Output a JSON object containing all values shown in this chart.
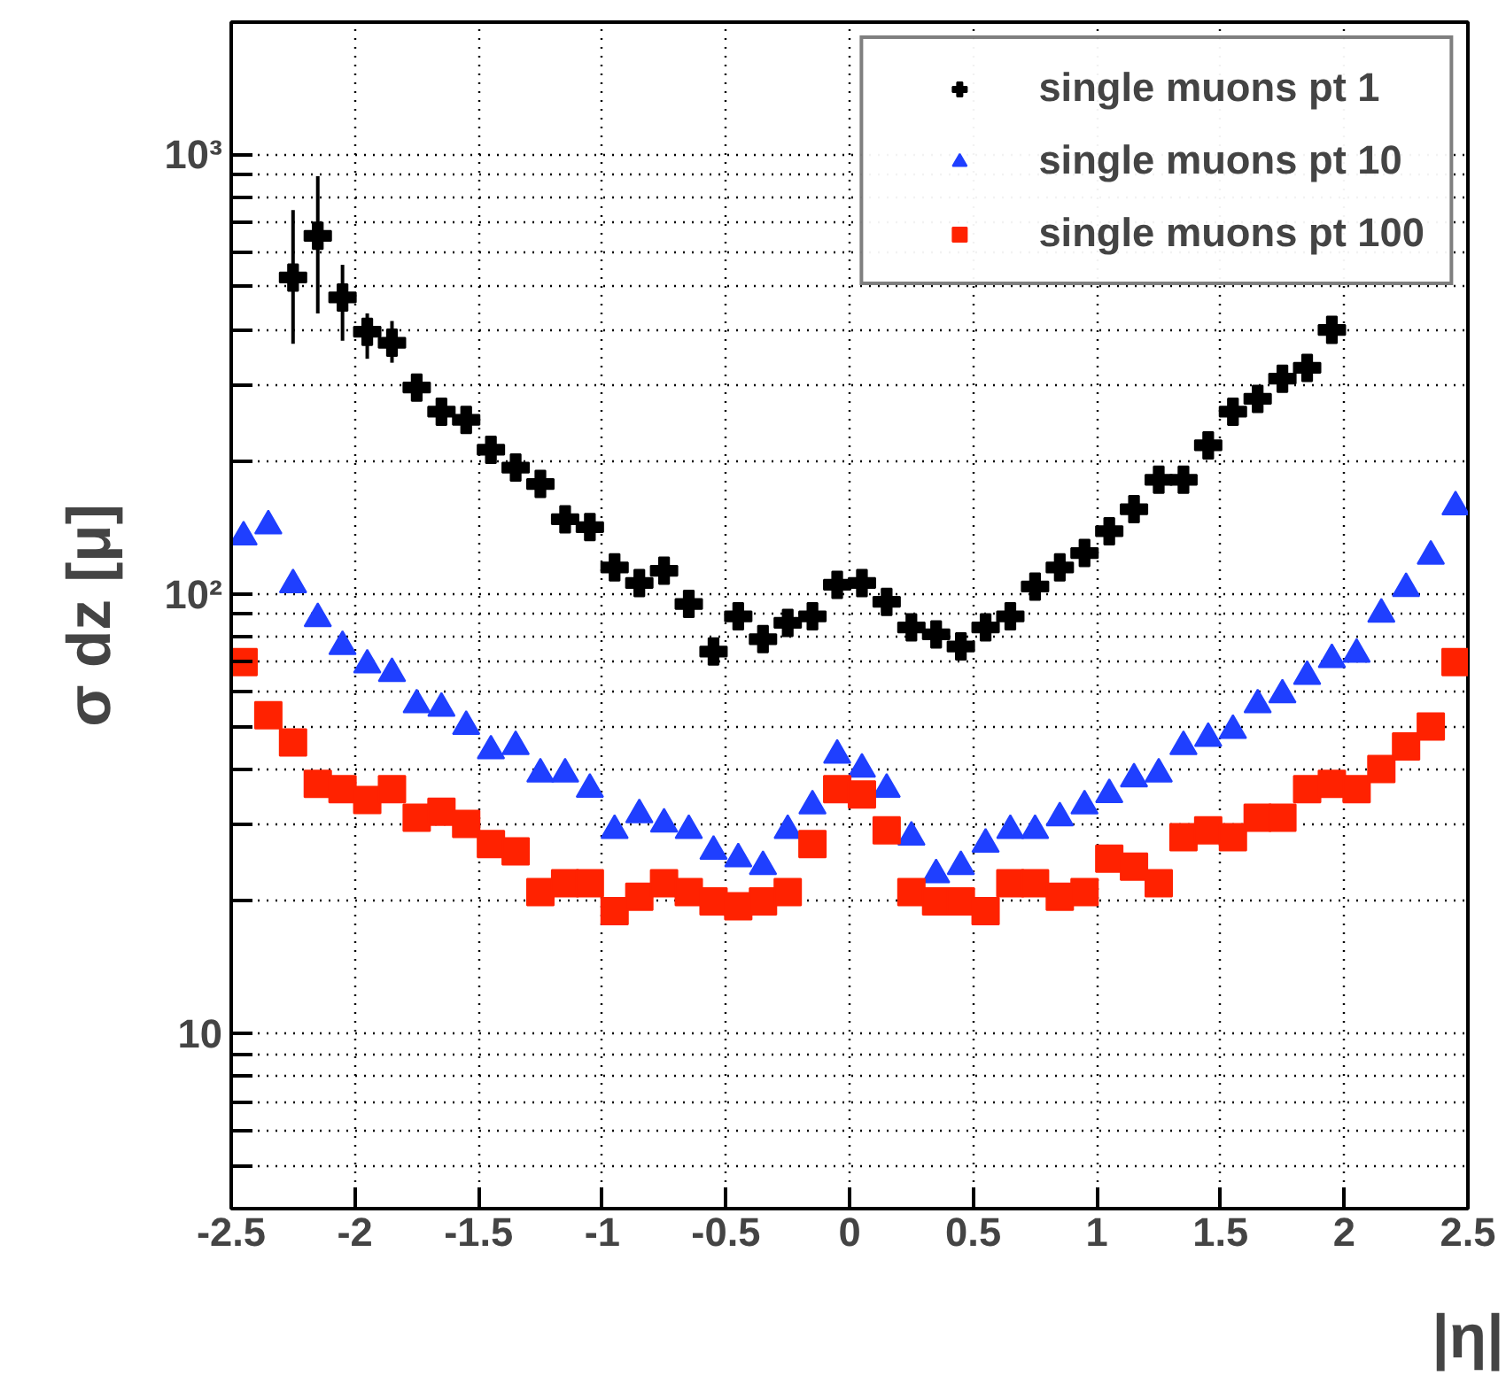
{
  "chart_data": {
    "type": "scatter",
    "ylabel": "σ dz [μ]",
    "xlabel": "|η|",
    "x": [
      -2.45,
      -2.35,
      -2.25,
      -2.15,
      -2.05,
      -1.95,
      -1.85,
      -1.75,
      -1.65,
      -1.55,
      -1.45,
      -1.35,
      -1.25,
      -1.15,
      -1.05,
      -0.95,
      -0.85,
      -0.75,
      -0.65,
      -0.55,
      -0.45,
      -0.35,
      -0.25,
      -0.15,
      -0.05,
      0.05,
      0.15,
      0.25,
      0.35,
      0.45,
      0.55,
      0.65,
      0.75,
      0.85,
      0.95,
      1.05,
      1.15,
      1.25,
      1.35,
      1.45,
      1.55,
      1.65,
      1.75,
      1.85,
      1.95,
      2.05,
      2.15,
      2.25,
      2.35,
      2.45
    ],
    "series": [
      {
        "name": "single muons pt 1",
        "color": "#000000",
        "marker": "cross",
        "values": [
          null,
          null,
          525,
          653,
          473,
          395,
          373,
          295,
          260,
          249,
          213,
          194,
          178,
          148,
          142,
          115,
          106,
          113,
          95,
          74,
          89,
          79,
          86,
          89,
          105,
          106,
          96,
          84,
          81,
          76,
          84,
          89,
          104,
          115,
          124,
          139,
          156,
          182,
          182,
          218,
          260,
          278,
          309,
          327,
          399,
          null,
          null,
          null,
          null,
          null
        ],
        "errors": [
          null,
          null,
          [
            371,
            747
          ],
          [
            435,
            892
          ],
          [
            377,
            561
          ],
          [
            343,
            435
          ],
          [
            336,
            418
          ],
          null,
          null,
          null,
          null,
          null,
          null,
          null,
          null,
          null,
          null,
          null,
          null,
          null,
          null,
          null,
          null,
          null,
          null,
          null,
          null,
          null,
          null,
          null,
          null,
          null,
          null,
          null,
          null,
          null,
          null,
          null,
          null,
          null,
          null,
          null,
          null,
          null,
          null,
          null,
          null,
          null,
          null,
          null
        ]
      },
      {
        "name": "single muons pt 10",
        "color": "#1f3fff",
        "marker": "triangle",
        "values": [
          135,
          143,
          105,
          88,
          76,
          69,
          66,
          56,
          55,
          50,
          44,
          45,
          39,
          39,
          36,
          29,
          31.5,
          30,
          29,
          26,
          25,
          24,
          29,
          33,
          43,
          40,
          36,
          28,
          23,
          24,
          27,
          29,
          29,
          31,
          33,
          35,
          38,
          39,
          45,
          47,
          49,
          56,
          59,
          65,
          71,
          73,
          90,
          103,
          122,
          158
        ]
      },
      {
        "name": "single muons pt 100",
        "color": "#ff2200",
        "marker": "square",
        "values": [
          70,
          53,
          46,
          37,
          36,
          34,
          36,
          31,
          32,
          30,
          27,
          26,
          21,
          22,
          22,
          19,
          20.5,
          22,
          21,
          20,
          19.5,
          20,
          21,
          27,
          36,
          35,
          29,
          21,
          20,
          20,
          19,
          22,
          22,
          20.5,
          21,
          25,
          24,
          22,
          28,
          29,
          28,
          31,
          31,
          36,
          37,
          36,
          40,
          45,
          50,
          70
        ]
      }
    ],
    "log": "y",
    "xlim": [
      -2.5,
      2.5
    ],
    "ylim": [
      4,
      2000
    ],
    "xticks": [
      -2.5,
      -2,
      -1.5,
      -1,
      -0.5,
      0,
      0.5,
      1,
      1.5,
      2,
      2.5
    ],
    "yticks": [
      {
        "value": 4,
        "label": null
      },
      {
        "value": 5,
        "label": null
      },
      {
        "value": 6,
        "label": null
      },
      {
        "value": 7,
        "label": null
      },
      {
        "value": 8,
        "label": null
      },
      {
        "value": 9,
        "label": null
      },
      10,
      {
        "value": 20,
        "label": null
      },
      {
        "value": 30,
        "label": null
      },
      {
        "value": 40,
        "label": null
      },
      {
        "value": 50,
        "label": null
      },
      {
        "value": 60,
        "label": null
      },
      {
        "value": 70,
        "label": null
      },
      {
        "value": 80,
        "label": null
      },
      {
        "value": 90,
        "label": null
      },
      {
        "value": 100,
        "label": "10²"
      },
      {
        "value": 200,
        "label": null
      },
      {
        "value": 300,
        "label": null
      },
      {
        "value": 400,
        "label": null
      },
      {
        "value": 500,
        "label": null
      },
      {
        "value": 600,
        "label": null
      },
      {
        "value": 700,
        "label": null
      },
      {
        "value": 800,
        "label": null
      },
      {
        "value": 900,
        "label": null
      },
      {
        "value": 1000,
        "label": "10³"
      }
    ],
    "grid": true,
    "legend": "top right"
  }
}
